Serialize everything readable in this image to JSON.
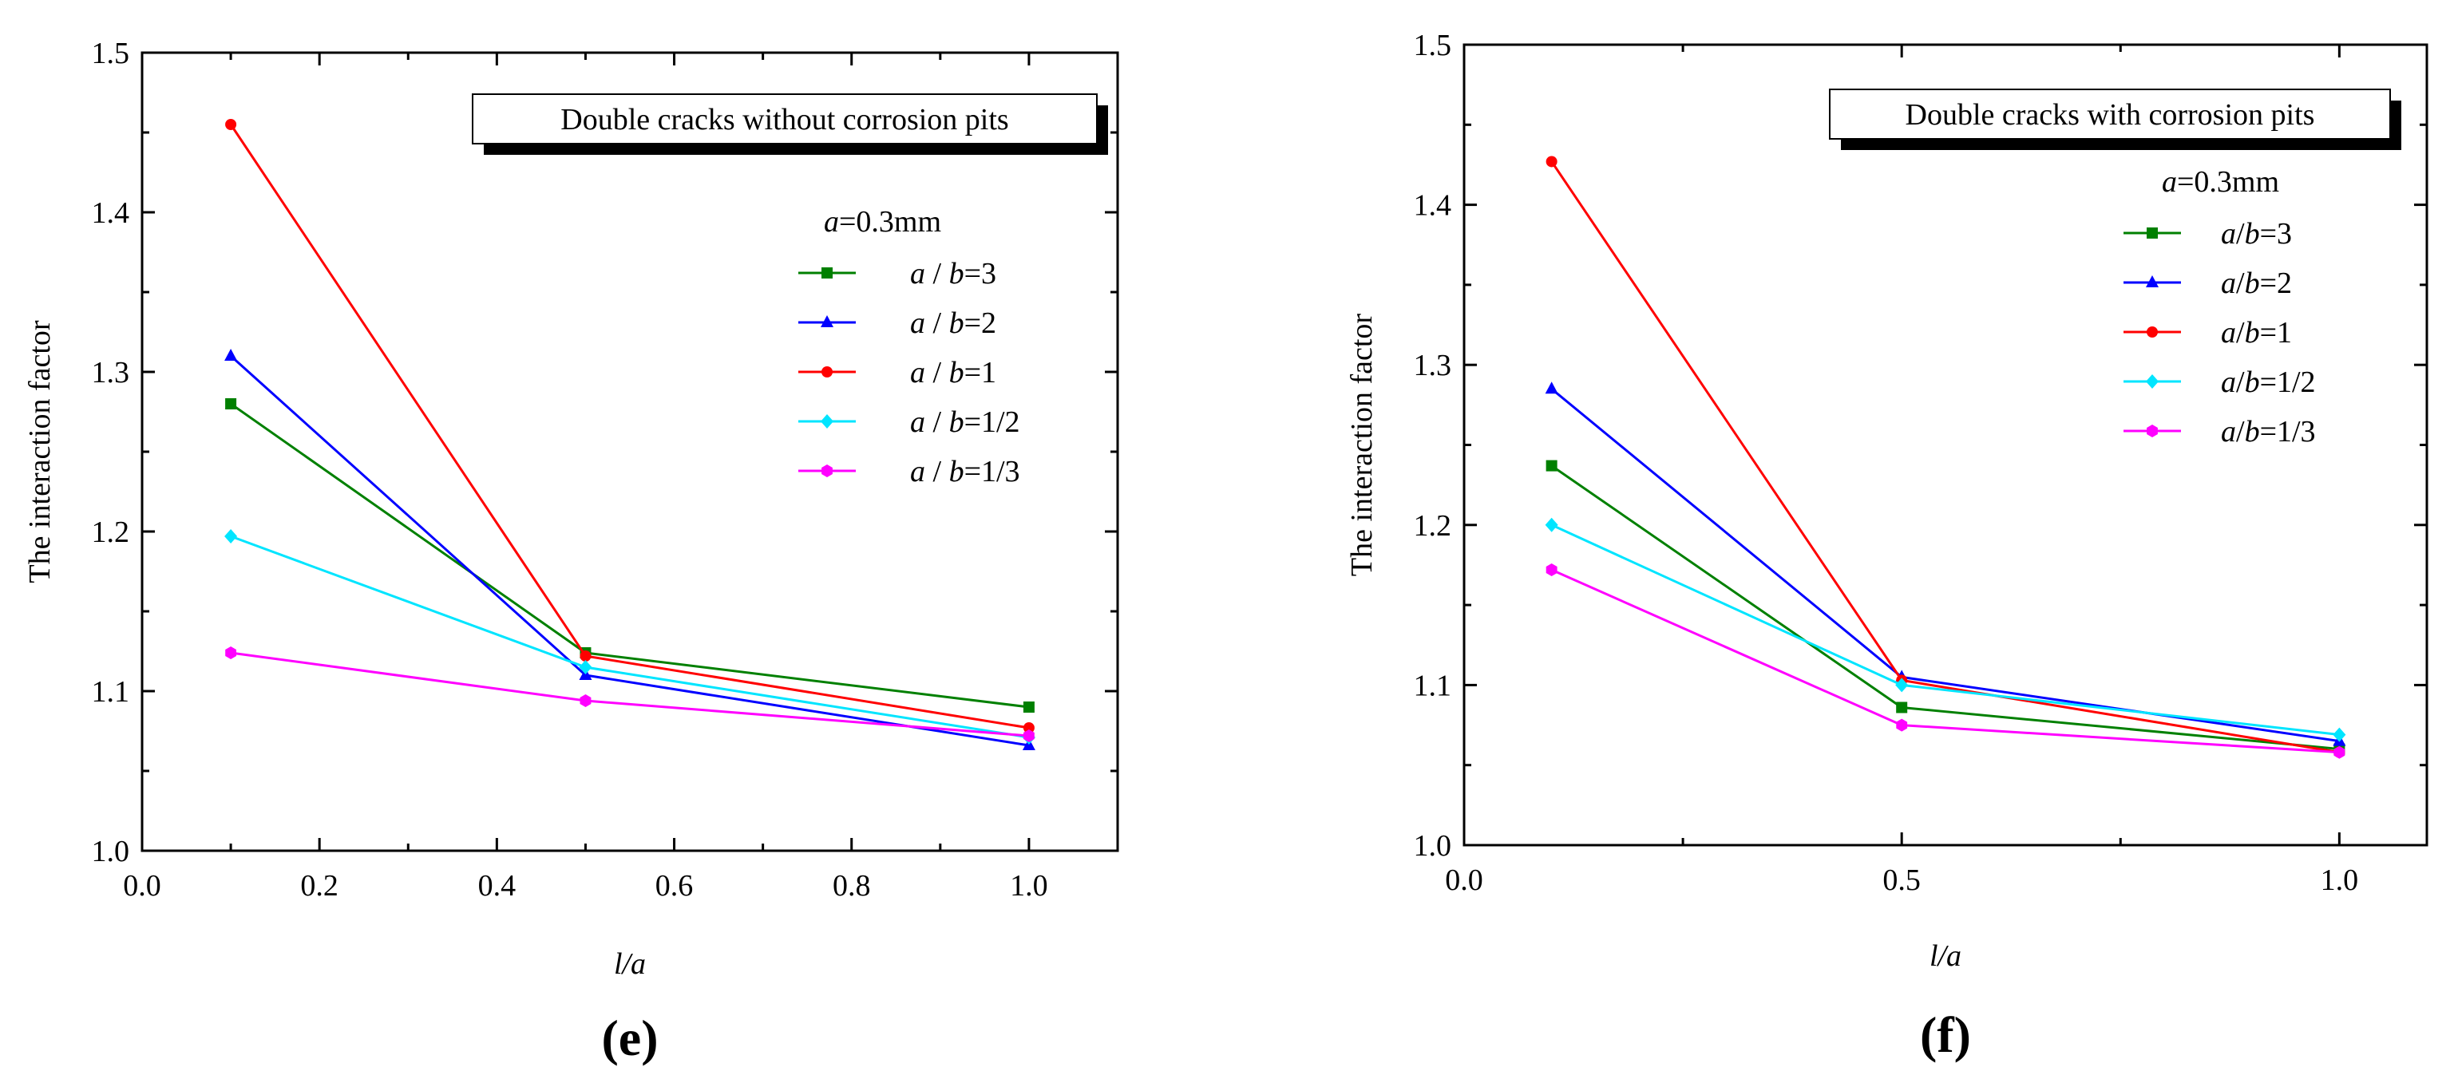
{
  "chart_data": [
    {
      "id": "e",
      "type": "line",
      "panel_label": "(e)",
      "annotation": "Double cracks without corrosion pits",
      "legend_title": "a=0.3mm",
      "legend_title_var": "a",
      "legend_title_val": "=0.3mm",
      "xlabel": "l/a",
      "ylabel": "The interaction factor",
      "xlim": [
        0,
        1.1
      ],
      "ylim": [
        1.0,
        1.5
      ],
      "x_ticks": [
        0.0,
        0.2,
        0.4,
        0.6,
        0.8,
        1.0
      ],
      "x_tick_labels": [
        "0.0",
        "0.2",
        "0.4",
        "0.6",
        "0.8",
        "1.0"
      ],
      "y_ticks": [
        1.0,
        1.1,
        1.2,
        1.3,
        1.4,
        1.5
      ],
      "y_tick_labels": [
        "1.0",
        "1.1",
        "1.2",
        "1.3",
        "1.4",
        "1.5"
      ],
      "x": [
        0.1,
        0.5,
        1.0
      ],
      "series": [
        {
          "name": "a / b=3",
          "var1": "a",
          "sep": " / ",
          "var2": "b",
          "rest": "=3",
          "color": "#008000",
          "marker": "square",
          "values": [
            1.28,
            1.124,
            1.09
          ]
        },
        {
          "name": "a / b=2",
          "var1": "a",
          "sep": " / ",
          "var2": "b",
          "rest": "=2",
          "color": "#0000ff",
          "marker": "triangle",
          "values": [
            1.31,
            1.11,
            1.066
          ]
        },
        {
          "name": "a / b=1",
          "var1": "a",
          "sep": " / ",
          "var2": "b",
          "rest": "=1",
          "color": "#ff0000",
          "marker": "circle",
          "values": [
            1.455,
            1.122,
            1.077
          ]
        },
        {
          "name": "a / b=1/2",
          "var1": "a",
          "sep": " / ",
          "var2": "b",
          "rest": "=1/2",
          "color": "#00e5ff",
          "marker": "diamond",
          "values": [
            1.197,
            1.115,
            1.071
          ]
        },
        {
          "name": "a / b=1/3",
          "var1": "a",
          "sep": " / ",
          "var2": "b",
          "rest": "=1/3",
          "color": "#ff00ff",
          "marker": "hexagon",
          "values": [
            1.124,
            1.094,
            1.072
          ]
        }
      ]
    },
    {
      "id": "f",
      "type": "line",
      "panel_label": "(f)",
      "annotation": "Double cracks with corrosion pits",
      "legend_title": "a=0.3mm",
      "legend_title_var": "a",
      "legend_title_val": "=0.3mm",
      "xlabel": "l/a",
      "ylabel": "The interaction factor",
      "xlim": [
        0,
        1.1
      ],
      "ylim": [
        1.0,
        1.5
      ],
      "x_ticks": [
        0.0,
        0.5,
        1.0
      ],
      "x_tick_labels": [
        "0.0",
        "0.5",
        "1.0"
      ],
      "y_ticks": [
        1.0,
        1.1,
        1.2,
        1.3,
        1.4,
        1.5
      ],
      "y_tick_labels": [
        "1.0",
        "1.1",
        "1.2",
        "1.3",
        "1.4",
        "1.5"
      ],
      "x": [
        0.1,
        0.5,
        1.0
      ],
      "series": [
        {
          "name": "a/b=3",
          "var1": "a",
          "sep": "/",
          "var2": "b",
          "rest": "=3",
          "color": "#008000",
          "marker": "square",
          "values": [
            1.237,
            1.086,
            1.06
          ]
        },
        {
          "name": "a/b=2",
          "var1": "a",
          "sep": "/",
          "var2": "b",
          "rest": "=2",
          "color": "#0000ff",
          "marker": "triangle",
          "values": [
            1.285,
            1.105,
            1.065
          ]
        },
        {
          "name": "a/b=1",
          "var1": "a",
          "sep": "/",
          "var2": "b",
          "rest": "=1",
          "color": "#ff0000",
          "marker": "circle",
          "values": [
            1.427,
            1.103,
            1.058
          ]
        },
        {
          "name": "a/b=1/2",
          "var1": "a",
          "sep": "/",
          "var2": "b",
          "rest": "=1/2",
          "color": "#00e5ff",
          "marker": "diamond",
          "values": [
            1.2,
            1.1,
            1.069
          ]
        },
        {
          "name": "a/b=1/3",
          "var1": "a",
          "sep": "/",
          "var2": "b",
          "rest": "=1/3",
          "color": "#ff00ff",
          "marker": "hexagon",
          "values": [
            1.172,
            1.075,
            1.058
          ]
        }
      ]
    }
  ]
}
